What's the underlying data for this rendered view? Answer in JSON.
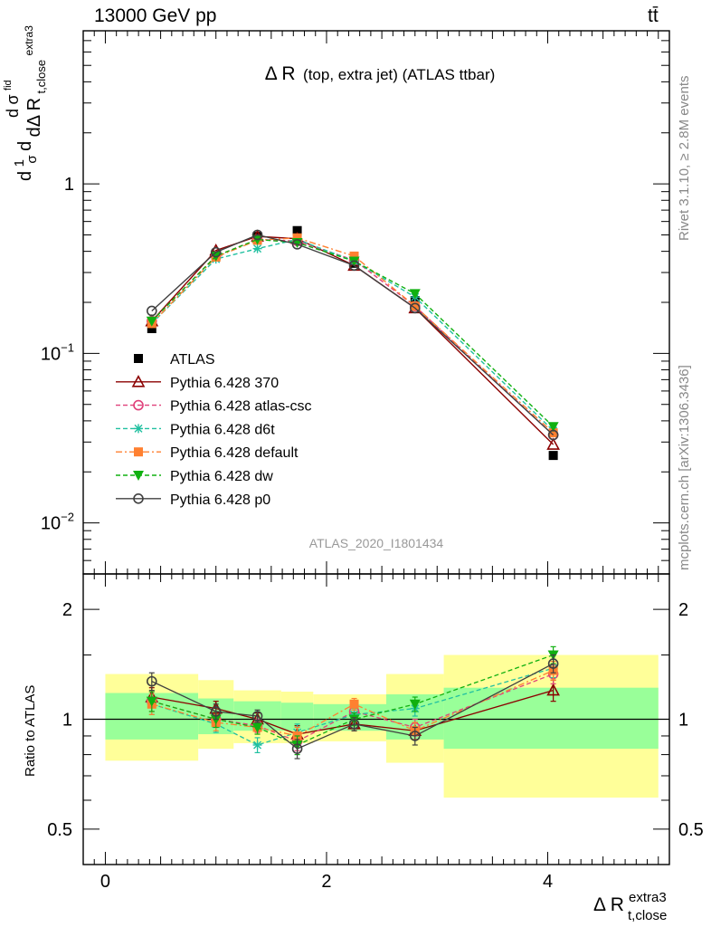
{
  "header": {
    "energy_label": "13000 GeV pp",
    "process_label": "tt̄",
    "side_top": "Rivet 3.1.10, ≥ 2.8M events",
    "side_bottom": "mcplots.cern.ch [arXiv:1306.3436]"
  },
  "chart_data": [
    {
      "type": "line",
      "panel": "main",
      "title_main": "Δ R",
      "title_small": "(top, extra jet) (ATLAS ttbar)",
      "analysis_id": "ATLAS_2020_I1801434",
      "y_scale": "log",
      "ylim": [
        0.005,
        8
      ],
      "xlim": [
        -0.2,
        5.1
      ],
      "y_ticks": [
        {
          "label": "1",
          "exp": ""
        },
        {
          "label": "10",
          "exp": "−1"
        },
        {
          "label": "10",
          "exp": "−2"
        }
      ],
      "ylabel_parts": {
        "d": "d",
        "one": "1",
        "sigma": "σ",
        "sigma_fid": "σ",
        "fid": "fid",
        "dDeltaR": "dΔ R",
        "sub": "t,close",
        "sup": "extra3"
      },
      "legend_position": "middle-left",
      "x": [
        0.42,
        1.0,
        1.375,
        1.735,
        2.25,
        2.8,
        4.05
      ],
      "series": [
        {
          "name": "ATLAS",
          "color": "#000000",
          "marker": "filled-square",
          "line": "none",
          "values": [
            0.14,
            0.38,
            0.49,
            0.53,
            0.34,
            0.205,
            0.025
          ]
        },
        {
          "name": "Pythia 6.428 370",
          "color": "#8b0000",
          "marker": "open-triangle",
          "line": "solid",
          "values": [
            0.155,
            0.405,
            0.49,
            0.475,
            0.33,
            0.185,
            0.029
          ]
        },
        {
          "name": "Pythia 6.428 atlas-csc",
          "color": "#e0407a",
          "marker": "open-circle",
          "line": "dashed",
          "values": [
            0.155,
            0.375,
            0.47,
            0.46,
            0.355,
            0.19,
            0.033
          ]
        },
        {
          "name": "Pythia 6.428 d6t",
          "color": "#20c0a0",
          "marker": "star",
          "line": "dashed",
          "values": [
            0.15,
            0.36,
            0.415,
            0.47,
            0.35,
            0.215,
            0.035
          ]
        },
        {
          "name": "Pythia 6.428 default",
          "color": "#ff8030",
          "marker": "filled-square",
          "line": "dashdot",
          "values": [
            0.15,
            0.37,
            0.465,
            0.48,
            0.375,
            0.19,
            0.034
          ]
        },
        {
          "name": "Pythia 6.428 dw",
          "color": "#10b010",
          "marker": "filled-triangle-down",
          "line": "dashed",
          "values": [
            0.155,
            0.375,
            0.47,
            0.45,
            0.35,
            0.225,
            0.037
          ]
        },
        {
          "name": "Pythia 6.428 p0",
          "color": "#404040",
          "marker": "open-circle",
          "line": "solid",
          "values": [
            0.178,
            0.395,
            0.5,
            0.44,
            0.33,
            0.185,
            0.033
          ]
        }
      ]
    },
    {
      "type": "line",
      "panel": "ratio",
      "ylabel": "Ratio to ATLAS",
      "xlabel_main": "Δ R",
      "xlabel_sub": "t,close",
      "xlabel_sup": "extra3",
      "y_scale": "log",
      "ylim": [
        0.4,
        2.5
      ],
      "xlim": [
        -0.2,
        5.1
      ],
      "y_ticks": [
        "2",
        "1",
        "0.5"
      ],
      "x_ticks": [
        "0",
        "2",
        "4"
      ],
      "bands": [
        {
          "x0": 0.0,
          "x1": 0.84,
          "stat_lo": 0.88,
          "stat_hi": 1.18,
          "total_lo": 0.77,
          "total_hi": 1.33
        },
        {
          "x0": 0.84,
          "x1": 1.16,
          "stat_lo": 0.91,
          "stat_hi": 1.14,
          "total_lo": 0.83,
          "total_hi": 1.28
        },
        {
          "x0": 1.16,
          "x1": 1.59,
          "stat_lo": 0.93,
          "stat_hi": 1.12,
          "total_lo": 0.86,
          "total_hi": 1.2
        },
        {
          "x0": 1.59,
          "x1": 1.88,
          "stat_lo": 0.93,
          "stat_hi": 1.11,
          "total_lo": 0.86,
          "total_hi": 1.19
        },
        {
          "x0": 1.88,
          "x1": 2.54,
          "stat_lo": 0.93,
          "stat_hi": 1.1,
          "total_lo": 0.87,
          "total_hi": 1.17
        },
        {
          "x0": 2.54,
          "x1": 3.06,
          "stat_lo": 0.88,
          "stat_hi": 1.17,
          "total_lo": 0.76,
          "total_hi": 1.33
        },
        {
          "x0": 3.06,
          "x1": 5.0,
          "stat_lo": 0.83,
          "stat_hi": 1.22,
          "total_lo": 0.61,
          "total_hi": 1.5
        }
      ],
      "series": [
        {
          "name": "Pythia 6.428 370",
          "color": "#8b0000",
          "marker": "open-triangle",
          "line": "solid",
          "values": [
            1.15,
            1.07,
            1.0,
            0.91,
            0.97,
            0.93,
            1.2
          ],
          "errors": [
            0.07,
            0.05,
            0.04,
            0.05,
            0.04,
            0.05,
            0.08
          ]
        },
        {
          "name": "Pythia 6.428 atlas-csc",
          "color": "#e0407a",
          "marker": "open-circle",
          "line": "dashed",
          "values": [
            1.12,
            1.0,
            0.96,
            0.87,
            1.05,
            0.95,
            1.33
          ],
          "errors": [
            0.07,
            0.05,
            0.04,
            0.05,
            0.04,
            0.05,
            0.08
          ]
        },
        {
          "name": "Pythia 6.428 d6t",
          "color": "#20c0a0",
          "marker": "star",
          "line": "dashed",
          "values": [
            1.1,
            0.97,
            0.85,
            0.92,
            1.03,
            1.07,
            1.38
          ],
          "errors": [
            0.07,
            0.05,
            0.04,
            0.05,
            0.04,
            0.05,
            0.08
          ]
        },
        {
          "name": "Pythia 6.428 default",
          "color": "#ff8030",
          "marker": "filled-square",
          "line": "dashdot",
          "values": [
            1.1,
            0.98,
            0.95,
            0.9,
            1.1,
            0.93,
            1.36
          ],
          "errors": [
            0.07,
            0.05,
            0.04,
            0.05,
            0.04,
            0.05,
            0.08
          ]
        },
        {
          "name": "Pythia 6.428 dw",
          "color": "#10b010",
          "marker": "filled-triangle-down",
          "line": "dashed",
          "values": [
            1.12,
            1.0,
            0.95,
            0.85,
            1.0,
            1.1,
            1.5
          ],
          "errors": [
            0.07,
            0.05,
            0.04,
            0.05,
            0.04,
            0.05,
            0.08
          ]
        },
        {
          "name": "Pythia 6.428 p0",
          "color": "#404040",
          "marker": "open-circle",
          "line": "solid",
          "values": [
            1.27,
            1.05,
            1.02,
            0.83,
            0.97,
            0.9,
            1.42
          ],
          "errors": [
            0.07,
            0.05,
            0.04,
            0.05,
            0.04,
            0.05,
            0.08
          ]
        }
      ]
    }
  ]
}
